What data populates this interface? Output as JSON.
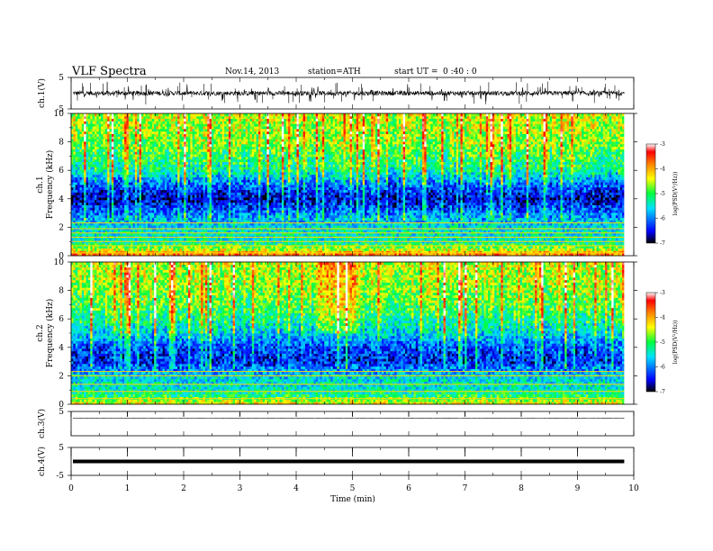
{
  "header": {
    "title": "VLF Spectra",
    "date": "Nov.14, 2013",
    "station": "station=ATH",
    "start_label": "start UT =",
    "start_time": "0 :40 : 0"
  },
  "chart_data": {
    "type": "heatmap",
    "x_axis": {
      "label": "Time (min)",
      "range": [
        0,
        10
      ],
      "ticks": [
        "0",
        "1",
        "2",
        "3",
        "4",
        "5",
        "6",
        "7",
        "8",
        "9",
        "10"
      ],
      "data_end": 9.83
    },
    "panels": [
      {
        "id": "ch1",
        "kind": "waveform",
        "ylabel": "ch.1(V)",
        "yticks": [
          "5",
          "-5"
        ],
        "ylim": [
          -5,
          5
        ],
        "baseline": 0,
        "noise_amplitude": 1.2
      },
      {
        "id": "ch1_spec",
        "kind": "spectrogram",
        "ylabel_lines": [
          "ch.1",
          "Frequency (kHz)"
        ],
        "yticks": [
          "0",
          "2",
          "4",
          "6",
          "8",
          "10"
        ],
        "ylim": [
          0,
          10
        ],
        "units": "kHz",
        "colorbar": {
          "label": "log(PSD(V²/Hz))",
          "ticks": [
            "-3",
            "-4",
            "-5",
            "-6",
            "-7"
          ],
          "range": [
            -7,
            -3
          ]
        },
        "band_profile": [
          {
            "f_khz": 0.0,
            "log_psd": -3.6
          },
          {
            "f_khz": 0.5,
            "log_psd": -4.6
          },
          {
            "f_khz": 1.0,
            "log_psd": -5.4
          },
          {
            "f_khz": 2.0,
            "log_psd": -5.5
          },
          {
            "f_khz": 3.0,
            "log_psd": -6.0
          },
          {
            "f_khz": 4.0,
            "log_psd": -6.6
          },
          {
            "f_khz": 5.0,
            "log_psd": -6.1
          },
          {
            "f_khz": 6.0,
            "log_psd": -5.3
          },
          {
            "f_khz": 7.0,
            "log_psd": -5.0
          },
          {
            "f_khz": 8.0,
            "log_psd": -4.7
          },
          {
            "f_khz": 9.0,
            "log_psd": -4.6
          },
          {
            "f_khz": 10.0,
            "log_psd": -4.5
          }
        ],
        "bright_lines_khz": [
          0.2,
          0.7,
          1.0,
          1.3,
          1.6,
          1.9,
          2.3
        ]
      },
      {
        "id": "ch2_spec",
        "kind": "spectrogram",
        "ylabel_lines": [
          "ch.2",
          "Frequency (kHz)"
        ],
        "yticks": [
          "0",
          "2",
          "4",
          "6",
          "8",
          "10"
        ],
        "ylim": [
          0,
          10
        ],
        "units": "kHz",
        "colorbar": {
          "label": "log(PSD(V²/Hz))",
          "ticks": [
            "-3",
            "-4",
            "-5",
            "-6",
            "-7"
          ],
          "range": [
            -7,
            -3
          ]
        },
        "band_profile": [
          {
            "f_khz": 0.0,
            "log_psd": -4.2
          },
          {
            "f_khz": 0.5,
            "log_psd": -5.0
          },
          {
            "f_khz": 1.0,
            "log_psd": -5.4
          },
          {
            "f_khz": 2.0,
            "log_psd": -5.6
          },
          {
            "f_khz": 3.0,
            "log_psd": -6.4
          },
          {
            "f_khz": 4.0,
            "log_psd": -6.2
          },
          {
            "f_khz": 5.0,
            "log_psd": -5.6
          },
          {
            "f_khz": 6.0,
            "log_psd": -5.2
          },
          {
            "f_khz": 7.0,
            "log_psd": -4.9
          },
          {
            "f_khz": 8.0,
            "log_psd": -4.7
          },
          {
            "f_khz": 9.0,
            "log_psd": -4.6
          },
          {
            "f_khz": 10.0,
            "log_psd": -4.5
          }
        ],
        "bright_lines_khz": [
          0.4,
          0.9,
          1.4,
          2.0,
          2.3
        ]
      },
      {
        "id": "ch3",
        "kind": "waveform",
        "ylabel": "ch.3(V)",
        "yticks": [
          "5"
        ],
        "ylim": [
          -5,
          5
        ],
        "baseline": 2.2,
        "noise_amplitude": 0.05
      },
      {
        "id": "ch4",
        "kind": "waveform",
        "ylabel": "ch.4(V)",
        "yticks": [
          "5",
          "-5"
        ],
        "ylim": [
          -5,
          5
        ],
        "baseline": 0,
        "noise_amplitude": 0.0,
        "thick": true
      }
    ]
  }
}
